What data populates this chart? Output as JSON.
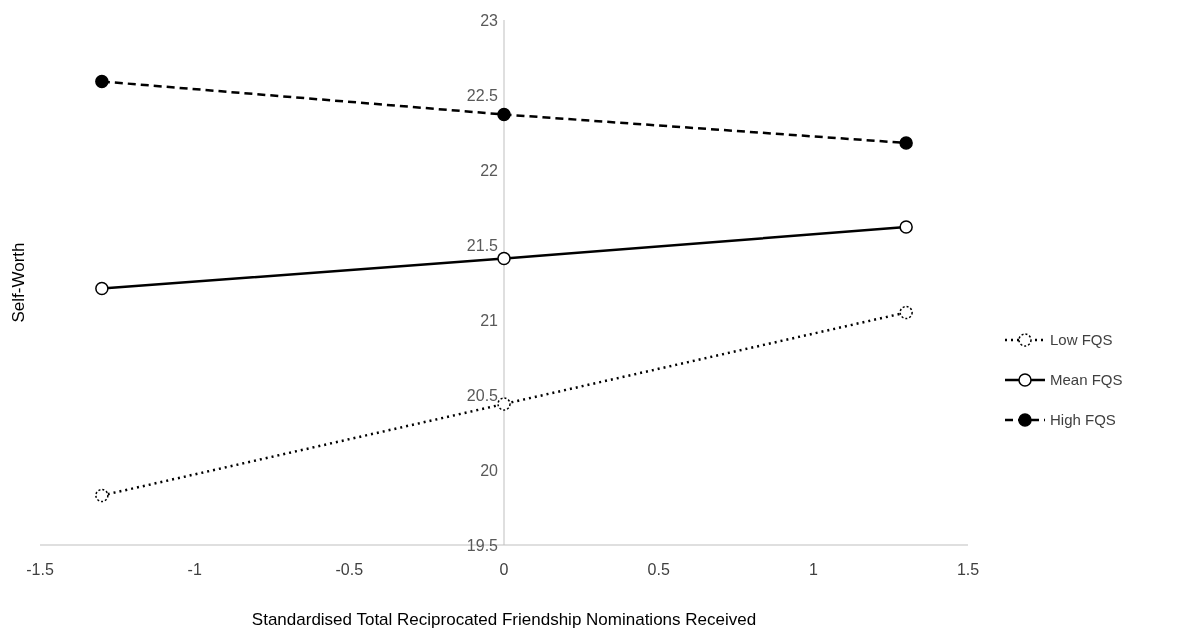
{
  "chart_data": {
    "type": "line",
    "xlabel": "Standardised Total Reciprocated Friendship Nominations Received",
    "ylabel": "Self-Worth",
    "x": [
      -1.3,
      0,
      1.3
    ],
    "series": [
      {
        "name": "Low FQS",
        "color": "#000000",
        "values": [
          19.83,
          20.44,
          21.05
        ],
        "line_style": "dotted"
      },
      {
        "name": "Mean FQS",
        "color": "#000000",
        "values": [
          21.21,
          21.41,
          21.62
        ],
        "line_style": "solid"
      },
      {
        "name": "High FQS",
        "color": "#000000",
        "values": [
          22.59,
          22.37,
          22.18
        ],
        "line_style": "dashed"
      }
    ],
    "xlim": [
      -1.5,
      1.5
    ],
    "xticks": [
      -1.5,
      -1,
      -0.5,
      0,
      0.5,
      1,
      1.5
    ],
    "ylim": [
      19.5,
      23
    ],
    "yticks": [
      19.5,
      20,
      20.5,
      21,
      21.5,
      22,
      22.5,
      23
    ],
    "grid": false,
    "legend": "right",
    "marker": "circle"
  }
}
